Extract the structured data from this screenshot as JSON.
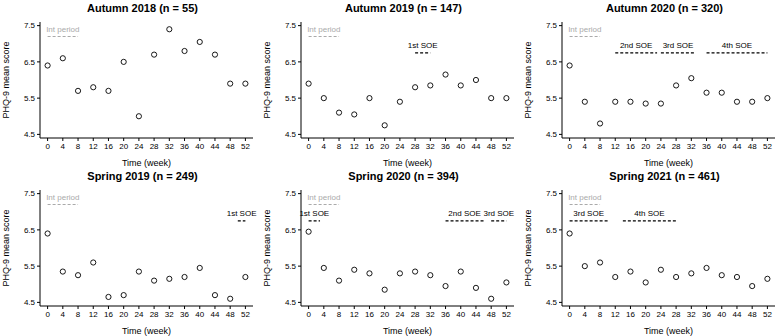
{
  "chart_data": [
    {
      "type": "scatter",
      "title": "Autumn 2018 (n = 55)",
      "x_label": "Time (week)",
      "y_label": "PHQ-9 mean score",
      "x": [
        0,
        4,
        8,
        12,
        16,
        20,
        24,
        28,
        32,
        36,
        40,
        44,
        48,
        52
      ],
      "values": [
        6.4,
        6.6,
        5.7,
        5.8,
        5.7,
        6.5,
        5.0,
        6.7,
        7.4,
        6.8,
        7.05,
        6.7,
        5.9,
        5.9
      ],
      "xlim": [
        -2,
        54
      ],
      "ylim": [
        4.4,
        7.6
      ],
      "xticks": [
        0,
        4,
        8,
        12,
        16,
        20,
        24,
        28,
        32,
        36,
        40,
        44,
        48,
        52
      ],
      "yticks": [
        4.5,
        5.5,
        6.5,
        7.5
      ],
      "color": "#000000",
      "marker": "circle_open",
      "annotations": [
        {
          "label": "Int period",
          "x_start": 0,
          "x_end": 8,
          "y": 7.2,
          "color": "#aaaaaa",
          "line_style": "dashed"
        }
      ]
    },
    {
      "type": "scatter",
      "title": "Autumn 2019 (n = 147)",
      "x_label": "Time (week)",
      "y_label": "PHQ-9 mean score",
      "x": [
        0,
        4,
        8,
        12,
        16,
        20,
        24,
        28,
        32,
        36,
        40,
        44,
        48,
        52
      ],
      "values": [
        5.9,
        5.5,
        5.1,
        5.05,
        5.5,
        4.75,
        5.4,
        5.8,
        5.85,
        6.15,
        5.85,
        6.0,
        5.5,
        5.5
      ],
      "xlim": [
        -2,
        54
      ],
      "ylim": [
        4.4,
        7.6
      ],
      "xticks": [
        0,
        4,
        8,
        12,
        16,
        20,
        24,
        28,
        32,
        36,
        40,
        44,
        48,
        52
      ],
      "yticks": [
        4.5,
        5.5,
        6.5,
        7.5
      ],
      "color": "#000000",
      "marker": "circle_open",
      "annotations": [
        {
          "label": "Int period",
          "x_start": 0,
          "x_end": 8,
          "y": 7.2,
          "color": "#aaaaaa",
          "line_style": "dashed"
        },
        {
          "label": "1st SOE",
          "x_start": 28,
          "x_end": 32,
          "y": 6.75,
          "color": "#000000",
          "line_style": "dashed"
        }
      ]
    },
    {
      "type": "scatter",
      "title": "Autumn 2020 (n = 320)",
      "x_label": "Time (week)",
      "y_label": "PHQ-9 mean score",
      "x": [
        0,
        4,
        8,
        12,
        16,
        20,
        24,
        28,
        32,
        36,
        40,
        44,
        48,
        52
      ],
      "values": [
        6.4,
        5.4,
        4.8,
        5.4,
        5.4,
        5.35,
        5.35,
        5.85,
        6.05,
        5.65,
        5.65,
        5.4,
        5.4,
        5.5
      ],
      "xlim": [
        -2,
        54
      ],
      "ylim": [
        4.4,
        7.6
      ],
      "xticks": [
        0,
        4,
        8,
        12,
        16,
        20,
        24,
        28,
        32,
        36,
        40,
        44,
        48,
        52
      ],
      "yticks": [
        4.5,
        5.5,
        6.5,
        7.5
      ],
      "color": "#000000",
      "marker": "circle_open",
      "annotations": [
        {
          "label": "Int period",
          "x_start": 0,
          "x_end": 8,
          "y": 7.2,
          "color": "#aaaaaa",
          "line_style": "dashed"
        },
        {
          "label": "2nd SOE",
          "x_start": 12,
          "x_end": 23,
          "y": 6.75,
          "color": "#000000",
          "line_style": "dashed"
        },
        {
          "label": "3rd SOE",
          "x_start": 24,
          "x_end": 33,
          "y": 6.75,
          "color": "#000000",
          "line_style": "dashed"
        },
        {
          "label": "4th SOE",
          "x_start": 36,
          "x_end": 52,
          "y": 6.75,
          "color": "#000000",
          "line_style": "dashed"
        }
      ]
    },
    {
      "type": "scatter",
      "title": "Spring 2019 (n = 249)",
      "x_label": "Time (week)",
      "y_label": "PHQ-9 mean score",
      "x": [
        0,
        4,
        8,
        12,
        16,
        20,
        24,
        28,
        32,
        36,
        40,
        44,
        48,
        52
      ],
      "values": [
        6.4,
        5.35,
        5.25,
        5.6,
        4.65,
        4.7,
        5.35,
        5.1,
        5.15,
        5.2,
        5.45,
        4.7,
        4.6,
        5.2
      ],
      "xlim": [
        -2,
        54
      ],
      "ylim": [
        4.4,
        7.6
      ],
      "xticks": [
        0,
        4,
        8,
        12,
        16,
        20,
        24,
        28,
        32,
        36,
        40,
        44,
        48,
        52
      ],
      "yticks": [
        4.5,
        5.5,
        6.5,
        7.5
      ],
      "color": "#000000",
      "marker": "circle_open",
      "annotations": [
        {
          "label": "Int period",
          "x_start": 0,
          "x_end": 8,
          "y": 7.2,
          "color": "#aaaaaa",
          "line_style": "dashed"
        },
        {
          "label": "1st SOE",
          "x_start": 50,
          "x_end": 52,
          "y": 6.75,
          "color": "#000000",
          "line_style": "dashed"
        }
      ]
    },
    {
      "type": "scatter",
      "title": "Spring 2020 (n = 394)",
      "x_label": "Time (week)",
      "y_label": "PHQ-9 mean score",
      "x": [
        0,
        4,
        8,
        12,
        16,
        20,
        24,
        28,
        32,
        36,
        40,
        44,
        48,
        52
      ],
      "values": [
        6.45,
        5.45,
        5.1,
        5.4,
        5.3,
        4.85,
        5.3,
        5.35,
        5.25,
        4.95,
        5.35,
        4.9,
        4.6,
        5.05
      ],
      "xlim": [
        -2,
        54
      ],
      "ylim": [
        4.4,
        7.6
      ],
      "xticks": [
        0,
        4,
        8,
        12,
        16,
        20,
        24,
        28,
        32,
        36,
        40,
        44,
        48,
        52
      ],
      "yticks": [
        4.5,
        5.5,
        6.5,
        7.5
      ],
      "color": "#000000",
      "marker": "circle_open",
      "annotations": [
        {
          "label": "Int period",
          "x_start": 0,
          "x_end": 8,
          "y": 7.2,
          "color": "#aaaaaa",
          "line_style": "dashed"
        },
        {
          "label": "1st SOE",
          "x_start": 0,
          "x_end": 3,
          "y": 6.75,
          "color": "#000000",
          "line_style": "dashed"
        },
        {
          "label": "2nd SOE",
          "x_start": 36,
          "x_end": 46,
          "y": 6.75,
          "color": "#000000",
          "line_style": "dashed"
        },
        {
          "label": "3rd SOE",
          "x_start": 48,
          "x_end": 52,
          "y": 6.75,
          "color": "#000000",
          "line_style": "dashed"
        }
      ]
    },
    {
      "type": "scatter",
      "title": "Spring 2021 (n = 461)",
      "x_label": "Time (week)",
      "y_label": "PHQ-9 mean score",
      "x": [
        0,
        4,
        8,
        12,
        16,
        20,
        24,
        28,
        32,
        36,
        40,
        44,
        48,
        52
      ],
      "values": [
        6.4,
        5.5,
        5.6,
        5.2,
        5.35,
        5.05,
        5.4,
        5.2,
        5.3,
        5.45,
        5.25,
        5.2,
        4.95,
        5.15
      ],
      "xlim": [
        -2,
        54
      ],
      "ylim": [
        4.4,
        7.6
      ],
      "xticks": [
        0,
        4,
        8,
        12,
        16,
        20,
        24,
        28,
        32,
        36,
        40,
        44,
        48,
        52
      ],
      "yticks": [
        4.5,
        5.5,
        6.5,
        7.5
      ],
      "color": "#000000",
      "marker": "circle_open",
      "annotations": [
        {
          "label": "Int period",
          "x_start": 0,
          "x_end": 8,
          "y": 7.2,
          "color": "#aaaaaa",
          "line_style": "dashed"
        },
        {
          "label": "3rd SOE",
          "x_start": 0,
          "x_end": 10,
          "y": 6.75,
          "color": "#000000",
          "line_style": "dashed"
        },
        {
          "label": "4th SOE",
          "x_start": 14,
          "x_end": 28,
          "y": 6.75,
          "color": "#000000",
          "line_style": "dashed"
        }
      ]
    }
  ]
}
